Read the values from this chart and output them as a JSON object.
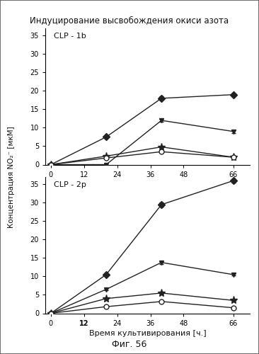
{
  "title": "Индуцирование высвобождения окиси азота",
  "xlabel": "Время культивирования [ч.]",
  "ylabel": "Концентрация NO₂⁻ [мкМ]",
  "fig_label": "Фиг. 56",
  "subplot1_label": "CLP - 1b",
  "subplot2_label": "CLP - 2p",
  "x": [
    0,
    20,
    40,
    66
  ],
  "subplot1": {
    "series1": {
      "y": [
        0,
        7.5,
        18.0,
        19.0
      ],
      "yerr": [
        0,
        0.3,
        0.5,
        0.4
      ],
      "marker": "D",
      "color": "#222222",
      "fillstyle": "full"
    },
    "series2": {
      "y": [
        0,
        0,
        12.0,
        9.0
      ],
      "yerr": [
        0,
        0.0,
        0.4,
        0.4
      ],
      "marker": "v",
      "color": "#222222",
      "fillstyle": "full"
    },
    "series3": {
      "y": [
        0,
        2.3,
        4.8,
        2.0
      ],
      "yerr": [
        0,
        0.2,
        0.3,
        0.2
      ],
      "marker": "*",
      "color": "#222222",
      "fillstyle": "full"
    },
    "series4": {
      "y": [
        0,
        1.8,
        3.5,
        2.0
      ],
      "yerr": [
        0,
        0.2,
        0.2,
        0.2
      ],
      "marker": "o",
      "color": "#222222",
      "fillstyle": "none"
    }
  },
  "subplot2": {
    "series1": {
      "y": [
        0,
        10.5,
        29.5,
        36.0
      ],
      "yerr": [
        0,
        0.3,
        0.5,
        0.5
      ],
      "marker": "D",
      "color": "#222222",
      "fillstyle": "full"
    },
    "series2": {
      "y": [
        0,
        6.5,
        13.8,
        10.5
      ],
      "yerr": [
        0,
        0.3,
        0.4,
        0.3
      ],
      "marker": "v",
      "color": "#222222",
      "fillstyle": "full"
    },
    "series3": {
      "y": [
        0,
        4.0,
        5.5,
        3.5
      ],
      "yerr": [
        0,
        0.2,
        0.3,
        0.2
      ],
      "marker": "*",
      "color": "#222222",
      "fillstyle": "full"
    },
    "series4": {
      "y": [
        0,
        1.8,
        3.2,
        1.5
      ],
      "yerr": [
        0,
        0.2,
        0.2,
        0.2
      ],
      "marker": "o",
      "color": "#222222",
      "fillstyle": "none"
    }
  },
  "ylim": [
    0,
    37
  ],
  "yticks": [
    0,
    5,
    10,
    15,
    20,
    25,
    30,
    35
  ],
  "xticks": [
    0,
    12,
    24,
    36,
    48,
    66
  ],
  "bg_color": "#e8e8e8",
  "plot_bg": "#ffffff",
  "linewidth": 1.0,
  "markersize": 5
}
